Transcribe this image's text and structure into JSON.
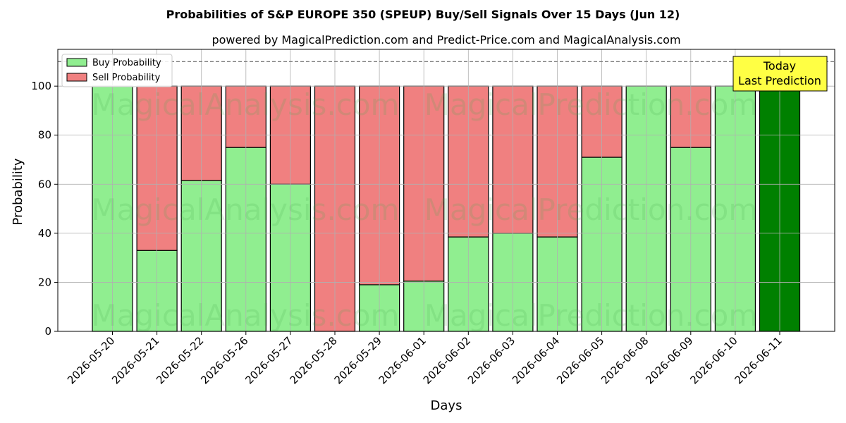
{
  "chart_data": {
    "type": "bar",
    "stacked": true,
    "title": "Probabilities of S&P EUROPE 350 (SPEUP) Buy/Sell Signals Over 15 Days (Jun 12)",
    "subtitle": "powered by MagicalPrediction.com and Predict-Price.com and MagicalAnalysis.com",
    "xlabel": "Days",
    "ylabel": "Probability",
    "ylim": [
      0,
      115
    ],
    "yticks": [
      0,
      20,
      40,
      60,
      80,
      100
    ],
    "grid": true,
    "legend_position": "top-left",
    "reference_line": 110,
    "categories": [
      "2026-05-20",
      "2026-05-21",
      "2026-05-22",
      "2026-05-26",
      "2026-05-27",
      "2026-05-28",
      "2026-05-29",
      "2026-06-01",
      "2026-06-02",
      "2026-06-03",
      "2026-06-04",
      "2026-06-05",
      "2026-06-08",
      "2026-06-09",
      "2026-06-10",
      "2026-06-11"
    ],
    "series": [
      {
        "name": "Buy Probability",
        "color": "#90ee90",
        "values": [
          100,
          33,
          61.5,
          75,
          60,
          0,
          19,
          20.5,
          38.5,
          40,
          38.5,
          71,
          100,
          75,
          100,
          100
        ]
      },
      {
        "name": "Sell Probability",
        "color": "#f08080",
        "values": [
          0,
          67,
          38.5,
          25,
          40,
          100,
          81,
          79.5,
          61.5,
          60,
          61.5,
          29,
          0,
          25,
          0,
          0
        ]
      }
    ],
    "highlight": {
      "index": 15,
      "color": "#008000"
    },
    "annotation": {
      "lines": [
        "Today",
        "Last Prediction"
      ],
      "fill": "#ffff44"
    },
    "watermarks": [
      "MagicalAnalysis.com",
      "MagicalPrediction.com"
    ]
  }
}
